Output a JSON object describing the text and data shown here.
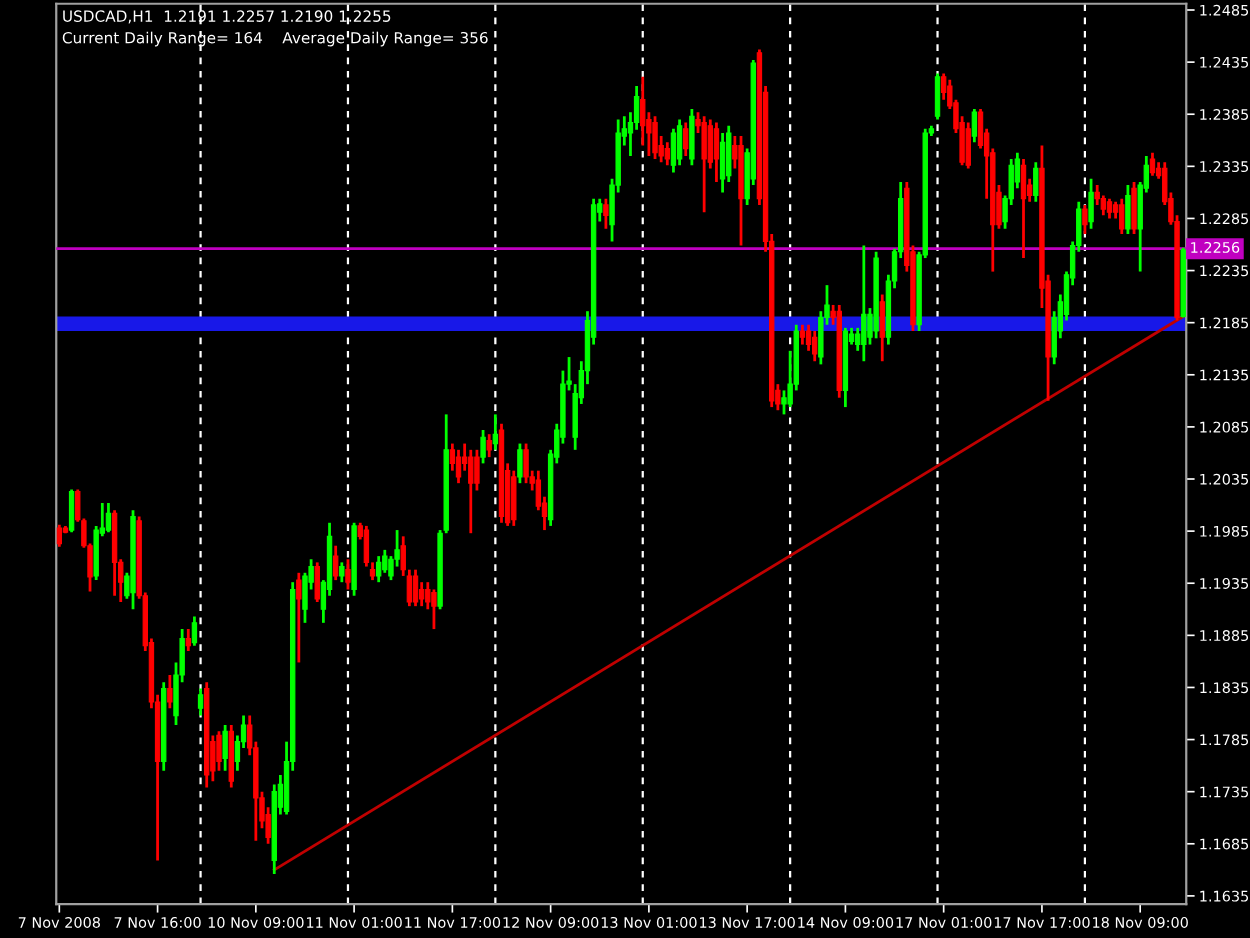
{
  "chart_data": {
    "type": "candlestick",
    "annotations": [
      "USDCAD,H1  1.2191 1.2257 1.2190 1.2255",
      "Current Daily Range= 164    Average Daily Range= 356"
    ],
    "categories": [
      "7 Nov 2008",
      null,
      null,
      null,
      null,
      null,
      null,
      null,
      null,
      null,
      null,
      null,
      null,
      null,
      null,
      null,
      "7 Nov 16:00",
      null,
      null,
      null,
      null,
      null,
      null,
      null,
      null,
      null,
      null,
      null,
      null,
      null,
      null,
      null,
      "10 Nov 09:00",
      null,
      null,
      null,
      null,
      null,
      null,
      null,
      null,
      null,
      null,
      null,
      null,
      null,
      null,
      null,
      "11 Nov 01:00",
      null,
      null,
      null,
      null,
      null,
      null,
      null,
      null,
      null,
      null,
      null,
      null,
      null,
      null,
      null,
      "11 Nov 17:00",
      null,
      null,
      null,
      null,
      null,
      null,
      null,
      null,
      null,
      null,
      null,
      null,
      null,
      null,
      null,
      "12 Nov 09:00",
      null,
      null,
      null,
      null,
      null,
      null,
      null,
      null,
      null,
      null,
      null,
      null,
      null,
      null,
      null,
      "13 Nov 01:00",
      null,
      null,
      null,
      null,
      null,
      null,
      null,
      null,
      null,
      null,
      null,
      null,
      null,
      null,
      null,
      "13 Nov 17:00",
      null,
      null,
      null,
      null,
      null,
      null,
      null,
      null,
      null,
      null,
      null,
      null,
      null,
      null,
      null,
      "14 Nov 09:00",
      null,
      null,
      null,
      null,
      null,
      null,
      null,
      null,
      null,
      null,
      null,
      null,
      null,
      null,
      null,
      "17 Nov 01:00",
      null,
      null,
      null,
      null,
      null,
      null,
      null,
      null,
      null,
      null,
      null,
      null,
      null,
      null,
      null,
      "17 Nov 17:00",
      null,
      null,
      null,
      null,
      null,
      null,
      null,
      null,
      null,
      null,
      null,
      null,
      null,
      null,
      null,
      "18 Nov 09:00",
      null,
      null,
      null,
      null,
      null,
      null,
      null
    ],
    "ohlc": [
      [
        1.1988,
        1.1991,
        1.197,
        1.1973
      ],
      [
        1.1988,
        1.199,
        1.1983,
        1.1984
      ],
      [
        1.1986,
        1.2025,
        1.1984,
        1.2023
      ],
      [
        1.2023,
        1.2025,
        1.1994,
        1.1996
      ],
      [
        1.1995,
        1.1997,
        1.1969,
        1.1971
      ],
      [
        1.1971,
        1.1973,
        1.1927,
        1.1941
      ],
      [
        1.1942,
        1.199,
        1.1938,
        1.1986
      ],
      [
        1.1983,
        1.2012,
        1.198,
        1.1988
      ],
      [
        1.1986,
        1.2012,
        1.1984,
        1.2002
      ],
      [
        1.2002,
        1.2005,
        1.1923,
        1.1955
      ],
      [
        1.1955,
        1.1958,
        1.1917,
        1.1936
      ],
      [
        1.1923,
        1.1945,
        1.192,
        1.1942
      ],
      [
        1.1926,
        1.2005,
        1.191,
        1.1999
      ],
      [
        1.1995,
        1.1999,
        1.192,
        1.1923
      ],
      [
        1.1923,
        1.1926,
        1.187,
        1.1875
      ],
      [
        1.1878,
        1.1882,
        1.1815,
        1.1821
      ],
      [
        1.1821,
        1.1828,
        1.1669,
        1.1764
      ],
      [
        1.1764,
        1.184,
        1.1755,
        1.1834
      ],
      [
        1.1834,
        1.1847,
        1.1815,
        1.1821
      ],
      [
        1.1808,
        1.1859,
        1.1799,
        1.1847
      ],
      [
        1.1847,
        1.1891,
        1.184,
        1.1882
      ],
      [
        1.1882,
        1.1891,
        1.187,
        1.1875
      ],
      [
        1.1878,
        1.1903,
        1.1875,
        1.1897
      ],
      [
        1.1815,
        1.1834,
        1.1808,
        1.1828
      ],
      [
        1.1834,
        1.184,
        1.1739,
        1.1751
      ],
      [
        1.1783,
        1.1789,
        1.1745,
        1.1755
      ],
      [
        1.1789,
        1.1793,
        1.1755,
        1.1764
      ],
      [
        1.1767,
        1.1799,
        1.1755,
        1.1793
      ],
      [
        1.1793,
        1.1799,
        1.1739,
        1.1745
      ],
      [
        1.1764,
        1.1789,
        1.1755,
        1.1783
      ],
      [
        1.1783,
        1.1808,
        1.1777,
        1.1799
      ],
      [
        1.1799,
        1.1808,
        1.177,
        1.1777
      ],
      [
        1.1777,
        1.1783,
        1.1688,
        1.1729
      ],
      [
        1.1729,
        1.1735,
        1.17,
        1.1707
      ],
      [
        1.1713,
        1.172,
        1.1685,
        1.1691
      ],
      [
        1.1669,
        1.1742,
        1.1656,
        1.1735
      ],
      [
        1.172,
        1.1751,
        1.1713,
        1.1742
      ],
      [
        1.1716,
        1.1783,
        1.1713,
        1.1764
      ],
      [
        1.1764,
        1.1936,
        1.1755,
        1.1929
      ],
      [
        1.1938,
        1.1945,
        1.1859,
        1.192
      ],
      [
        1.191,
        1.1945,
        1.1897,
        1.1942
      ],
      [
        1.1936,
        1.1958,
        1.1929,
        1.1951
      ],
      [
        1.1951,
        1.1955,
        1.1917,
        1.192
      ],
      [
        1.191,
        1.1938,
        1.1897,
        1.1936
      ],
      [
        1.1929,
        1.1993,
        1.1923,
        1.198
      ],
      [
        1.1961,
        1.1971,
        1.1938,
        1.1942
      ],
      [
        1.1942,
        1.1955,
        1.1936,
        1.1951
      ],
      [
        1.1948,
        1.1958,
        1.1929,
        1.1936
      ],
      [
        1.1929,
        1.1993,
        1.1923,
        1.199
      ],
      [
        1.199,
        1.1993,
        1.1977,
        1.198
      ],
      [
        1.1986,
        1.199,
        1.1951,
        1.1955
      ],
      [
        1.1948,
        1.1955,
        1.1938,
        1.1942
      ],
      [
        1.1942,
        1.1961,
        1.1936,
        1.1955
      ],
      [
        1.1948,
        1.1967,
        1.1945,
        1.1961
      ],
      [
        1.1942,
        1.1961,
        1.1938,
        1.1958
      ],
      [
        1.1958,
        1.1986,
        1.1951,
        1.1967
      ],
      [
        1.1971,
        1.198,
        1.1942,
        1.1948
      ],
      [
        1.1942,
        1.1948,
        1.1913,
        1.1917
      ],
      [
        1.1942,
        1.1948,
        1.1913,
        1.1917
      ],
      [
        1.1929,
        1.1936,
        1.1913,
        1.192
      ],
      [
        1.1929,
        1.1936,
        1.191,
        1.1917
      ],
      [
        1.1926,
        1.1929,
        1.1891,
        1.1913
      ],
      [
        1.1913,
        1.1986,
        1.191,
        1.1983
      ],
      [
        1.1986,
        1.2097,
        1.1983,
        1.2063
      ],
      [
        1.2063,
        1.2069,
        1.2043,
        1.205
      ],
      [
        1.2056,
        1.2063,
        1.2031,
        1.2037
      ],
      [
        1.2056,
        1.2069,
        1.2043,
        1.205
      ],
      [
        1.2056,
        1.2063,
        1.1983,
        1.2031
      ],
      [
        1.2056,
        1.2063,
        1.2024,
        1.2031
      ],
      [
        1.2056,
        1.2082,
        1.205,
        1.2075
      ],
      [
        1.2072,
        1.2078,
        1.2056,
        1.2063
      ],
      [
        1.2069,
        1.2097,
        1.2063,
        1.2078
      ],
      [
        1.2082,
        1.2088,
        1.1993,
        1.1999
      ],
      [
        1.2043,
        1.205,
        1.199,
        1.1993
      ],
      [
        1.2037,
        1.2043,
        1.199,
        1.1996
      ],
      [
        1.2037,
        1.2069,
        1.2031,
        1.2063
      ],
      [
        1.2063,
        1.2069,
        1.2031,
        1.2037
      ],
      [
        1.2037,
        1.2043,
        1.2024,
        1.2031
      ],
      [
        1.2034,
        1.2043,
        1.2005,
        1.2009
      ],
      [
        1.2012,
        1.2018,
        1.1986,
        1.1999
      ],
      [
        1.1996,
        1.2063,
        1.199,
        1.2059
      ],
      [
        1.2056,
        1.2088,
        1.205,
        1.2082
      ],
      [
        1.2075,
        1.2139,
        1.2069,
        1.2126
      ],
      [
        1.2126,
        1.2152,
        1.212,
        1.2129
      ],
      [
        1.2075,
        1.2126,
        1.2063,
        1.2117
      ],
      [
        1.2113,
        1.2148,
        1.2107,
        1.2139
      ],
      [
        1.2139,
        1.2196,
        1.2126,
        1.2187
      ],
      [
        1.2171,
        1.2304,
        1.2164,
        1.2298
      ],
      [
        1.2291,
        1.2304,
        1.2282,
        1.2299
      ],
      [
        1.2298,
        1.2304,
        1.2275,
        1.2288
      ],
      [
        1.2279,
        1.2323,
        1.2263,
        1.2317
      ],
      [
        1.2317,
        1.238,
        1.231,
        1.2367
      ],
      [
        1.2364,
        1.2383,
        1.2355,
        1.2371
      ],
      [
        1.2367,
        1.2387,
        1.2345,
        1.2377
      ],
      [
        1.2377,
        1.2412,
        1.237,
        1.2402
      ],
      [
        1.2399,
        1.2421,
        1.2355,
        1.2374
      ],
      [
        1.238,
        1.2387,
        1.2345,
        1.2367
      ],
      [
        1.2377,
        1.2383,
        1.2342,
        1.2348
      ],
      [
        1.2355,
        1.2364,
        1.2339,
        1.2345
      ],
      [
        1.2352,
        1.2358,
        1.2336,
        1.2342
      ],
      [
        1.2336,
        1.2371,
        1.2329,
        1.2367
      ],
      [
        1.2342,
        1.238,
        1.2336,
        1.2374
      ],
      [
        1.2371,
        1.2377,
        1.2345,
        1.2352
      ],
      [
        1.2342,
        1.239,
        1.2336,
        1.2383
      ],
      [
        1.238,
        1.2387,
        1.2367,
        1.2374
      ],
      [
        1.2377,
        1.2383,
        1.2291,
        1.2342
      ],
      [
        1.2374,
        1.238,
        1.2333,
        1.2339
      ],
      [
        1.2371,
        1.2377,
        1.232,
        1.2342
      ],
      [
        1.2323,
        1.2367,
        1.231,
        1.2358
      ],
      [
        1.2326,
        1.2374,
        1.232,
        1.2367
      ],
      [
        1.2355,
        1.2364,
        1.2333,
        1.2342
      ],
      [
        1.2355,
        1.2364,
        1.2259,
        1.2304
      ],
      [
        1.2304,
        1.2352,
        1.2298,
        1.2348
      ],
      [
        1.2323,
        1.2437,
        1.2317,
        1.2434
      ],
      [
        1.2444,
        1.2447,
        1.2298,
        1.2304
      ],
      [
        1.2406,
        1.2412,
        1.2253,
        1.2263
      ],
      [
        1.2263,
        1.227,
        1.2104,
        1.211
      ],
      [
        1.212,
        1.2126,
        1.2101,
        1.2107
      ],
      [
        1.2107,
        1.212,
        1.2097,
        1.2113
      ],
      [
        1.2107,
        1.2158,
        1.2104,
        1.2126
      ],
      [
        1.2126,
        1.2183,
        1.212,
        1.2177
      ],
      [
        1.2177,
        1.2183,
        1.2164,
        1.2171
      ],
      [
        1.2177,
        1.2183,
        1.2158,
        1.2164
      ],
      [
        1.2171,
        1.2177,
        1.2148,
        1.2155
      ],
      [
        1.2152,
        1.2196,
        1.2145,
        1.219
      ],
      [
        1.219,
        1.2221,
        1.2183,
        1.2202
      ],
      [
        1.2196,
        1.2202,
        1.2183,
        1.219
      ],
      [
        1.2196,
        1.2202,
        1.2113,
        1.212
      ],
      [
        1.212,
        1.218,
        1.2104,
        1.2177
      ],
      [
        1.2167,
        1.218,
        1.2164,
        1.2174
      ],
      [
        1.2164,
        1.218,
        1.2158,
        1.2174
      ],
      [
        1.2164,
        1.2259,
        1.2148,
        1.2193
      ],
      [
        1.2171,
        1.2199,
        1.2164,
        1.2193
      ],
      [
        1.2177,
        1.2253,
        1.217,
        1.2247
      ],
      [
        1.2205,
        1.2212,
        1.2148,
        1.2171
      ],
      [
        1.2171,
        1.2231,
        1.2164,
        1.2225
      ],
      [
        1.2225,
        1.2256,
        1.2218,
        1.2253
      ],
      [
        1.2253,
        1.232,
        1.2247,
        1.2304
      ],
      [
        1.2314,
        1.232,
        1.2234,
        1.224
      ],
      [
        1.2253,
        1.2259,
        1.2177,
        1.2183
      ],
      [
        1.2183,
        1.2253,
        1.2177,
        1.225
      ],
      [
        1.225,
        1.2371,
        1.2247,
        1.2367
      ],
      [
        1.2367,
        1.2374,
        1.2364,
        1.2371
      ],
      [
        1.2383,
        1.2424,
        1.238,
        1.2421
      ],
      [
        1.2421,
        1.2424,
        1.2399,
        1.2406
      ],
      [
        1.2412,
        1.2418,
        1.239,
        1.2393
      ],
      [
        1.2396,
        1.2399,
        1.2367,
        1.2371
      ],
      [
        1.2377,
        1.2383,
        1.2336,
        1.2339
      ],
      [
        1.2371,
        1.2377,
        1.2333,
        1.2336
      ],
      [
        1.2364,
        1.239,
        1.2358,
        1.2387
      ],
      [
        1.2387,
        1.239,
        1.2352,
        1.2355
      ],
      [
        1.2367,
        1.2371,
        1.2304,
        1.2345
      ],
      [
        1.2348,
        1.2352,
        1.2234,
        1.2279
      ],
      [
        1.231,
        1.2317,
        1.2275,
        1.2279
      ],
      [
        1.2282,
        1.2307,
        1.2275,
        1.2304
      ],
      [
        1.2304,
        1.2342,
        1.2298,
        1.2336
      ],
      [
        1.232,
        1.2348,
        1.2314,
        1.2342
      ],
      [
        1.2336,
        1.2342,
        1.2247,
        1.2304
      ],
      [
        1.2317,
        1.2323,
        1.2301,
        1.2307
      ],
      [
        1.2307,
        1.2339,
        1.2301,
        1.2333
      ],
      [
        1.2333,
        1.2355,
        1.2199,
        1.2218
      ],
      [
        1.2225,
        1.2231,
        1.211,
        1.2152
      ],
      [
        1.2152,
        1.2196,
        1.2145,
        1.219
      ],
      [
        1.2177,
        1.2212,
        1.217,
        1.2205
      ],
      [
        1.2193,
        1.2234,
        1.2187,
        1.2231
      ],
      [
        1.2228,
        1.2263,
        1.2221,
        1.2259
      ],
      [
        1.2259,
        1.2301,
        1.2253,
        1.2294
      ],
      [
        1.2294,
        1.2298,
        1.227,
        1.2279
      ],
      [
        1.2282,
        1.2323,
        1.2275,
        1.231
      ],
      [
        1.231,
        1.2317,
        1.2298,
        1.2304
      ],
      [
        1.2304,
        1.2307,
        1.2288,
        1.2294
      ],
      [
        1.2301,
        1.2304,
        1.2285,
        1.2291
      ],
      [
        1.2298,
        1.2301,
        1.2285,
        1.2291
      ],
      [
        1.2298,
        1.2304,
        1.227,
        1.2275
      ],
      [
        1.2275,
        1.2317,
        1.227,
        1.2307
      ],
      [
        1.2314,
        1.232,
        1.227,
        1.2275
      ],
      [
        1.2275,
        1.232,
        1.2234,
        1.2317
      ],
      [
        1.2314,
        1.2345,
        1.231,
        1.2336
      ],
      [
        1.2342,
        1.2348,
        1.2326,
        1.2329
      ],
      [
        1.2333,
        1.2339,
        1.2323,
        1.2326
      ],
      [
        1.2333,
        1.2339,
        1.2298,
        1.2301
      ],
      [
        1.2304,
        1.231,
        1.2279,
        1.2282
      ],
      [
        1.2282,
        1.2288,
        1.2187,
        1.219
      ],
      [
        1.2191,
        1.2257,
        1.219,
        1.2255
      ]
    ],
    "colors": [
      "#ff0000",
      "#ff0000",
      "#00ff00",
      "#ff0000",
      "#ff0000",
      "#ff0000",
      "#00ff00",
      "#00ff00",
      "#00ff00",
      "#ff0000",
      "#ff0000",
      "#00ff00",
      "#00ff00",
      "#ff0000",
      "#ff0000",
      "#ff0000",
      "#ff0000",
      "#00ff00",
      "#ff0000",
      "#00ff00",
      "#00ff00",
      "#ff0000",
      "#00ff00",
      "#00ff00",
      "#ff0000",
      "#ff0000",
      "#ff0000",
      "#00ff00",
      "#ff0000",
      "#00ff00",
      "#00ff00",
      "#ff0000",
      "#ff0000",
      "#ff0000",
      "#ff0000",
      "#00ff00",
      "#00ff00",
      "#00ff00",
      "#00ff00",
      "#ff0000",
      "#00ff00",
      "#00ff00",
      "#ff0000",
      "#00ff00",
      "#00ff00",
      "#ff0000",
      "#00ff00",
      "#ff0000",
      "#00ff00",
      "#ff0000",
      "#ff0000",
      "#ff0000",
      "#00ff00",
      "#00ff00",
      "#00ff00",
      "#00ff00",
      "#ff0000",
      "#ff0000",
      "#ff0000",
      "#ff0000",
      "#ff0000",
      "#ff0000",
      "#00ff00",
      "#00ff00",
      "#ff0000",
      "#ff0000",
      "#ff0000",
      "#ff0000",
      "#ff0000",
      "#00ff00",
      "#ff0000",
      "#00ff00",
      "#ff0000",
      "#ff0000",
      "#ff0000",
      "#00ff00",
      "#ff0000",
      "#ff0000",
      "#ff0000",
      "#ff0000",
      "#00ff00",
      "#00ff00",
      "#00ff00",
      "#00ff00",
      "#00ff00",
      "#00ff00",
      "#00ff00",
      "#00ff00",
      "#00ff00",
      "#ff0000",
      "#00ff00",
      "#00ff00",
      "#00ff00",
      "#00ff00",
      "#00ff00",
      "#ff0000",
      "#ff0000",
      "#ff0000",
      "#ff0000",
      "#ff0000",
      "#00ff00",
      "#00ff00",
      "#ff0000",
      "#00ff00",
      "#ff0000",
      "#ff0000",
      "#ff0000",
      "#ff0000",
      "#00ff00",
      "#00ff00",
      "#ff0000",
      "#ff0000",
      "#00ff00",
      "#00ff00",
      "#ff0000",
      "#ff0000",
      "#ff0000",
      "#ff0000",
      "#00ff00",
      "#00ff00",
      "#00ff00",
      "#ff0000",
      "#ff0000",
      "#ff0000",
      "#00ff00",
      "#00ff00",
      "#ff0000",
      "#ff0000",
      "#00ff00",
      "#00ff00",
      "#00ff00",
      "#00ff00",
      "#00ff00",
      "#00ff00",
      "#ff0000",
      "#00ff00",
      "#00ff00",
      "#00ff00",
      "#ff0000",
      "#ff0000",
      "#00ff00",
      "#00ff00",
      "#00ff00",
      "#00ff00",
      "#ff0000",
      "#ff0000",
      "#ff0000",
      "#ff0000",
      "#ff0000",
      "#00ff00",
      "#ff0000",
      "#ff0000",
      "#ff0000",
      "#ff0000",
      "#00ff00",
      "#00ff00",
      "#00ff00",
      "#ff0000",
      "#ff0000",
      "#00ff00",
      "#ff0000",
      "#ff0000",
      "#00ff00",
      "#00ff00",
      "#00ff00",
      "#00ff00",
      "#00ff00",
      "#ff0000",
      "#00ff00",
      "#ff0000",
      "#ff0000",
      "#ff0000",
      "#ff0000",
      "#ff0000",
      "#00ff00",
      "#ff0000",
      "#00ff00",
      "#00ff00",
      "#ff0000",
      "#ff0000",
      "#ff0000",
      "#ff0000",
      "#ff0000",
      "#00ff00"
    ],
    "series": [
      {
        "type": "line",
        "color": "#c00000",
        "values": [
          null,
          null,
          null,
          null,
          null,
          null,
          null,
          null,
          null,
          null,
          null,
          null,
          null,
          null,
          null,
          null,
          null,
          null,
          null,
          null,
          null,
          null,
          null,
          null,
          null,
          null,
          null,
          null,
          null,
          null,
          null,
          null,
          null,
          null,
          null,
          1.166,
          null,
          null,
          null,
          null,
          null,
          null,
          null,
          null,
          null,
          null,
          null,
          null,
          null,
          null,
          null,
          null,
          null,
          null,
          null,
          null,
          null,
          null,
          null,
          null,
          null,
          null,
          null,
          null,
          null,
          null,
          null,
          null,
          null,
          null,
          null,
          null,
          null,
          null,
          null,
          null,
          null,
          null,
          null,
          null,
          null,
          null,
          null,
          null,
          null,
          null,
          null,
          null,
          null,
          null,
          null,
          null,
          null,
          null,
          null,
          null,
          null,
          null,
          null,
          null,
          null,
          null,
          null,
          null,
          null,
          null,
          null,
          null,
          null,
          null,
          null,
          null,
          null,
          null,
          null,
          null,
          null,
          null,
          null,
          null,
          null,
          null,
          null,
          null,
          null,
          null,
          null,
          null,
          null,
          null,
          null,
          null,
          null,
          null,
          null,
          null,
          null,
          null,
          null,
          null,
          null,
          null,
          null,
          null,
          null,
          null,
          null,
          null,
          null,
          null,
          null,
          null,
          null,
          null,
          null,
          null,
          null,
          null,
          null,
          null,
          null,
          null,
          null,
          null,
          null,
          null,
          null,
          null,
          null,
          null,
          null,
          null,
          null,
          null,
          null,
          null,
          null,
          null,
          null,
          null,
          null,
          null,
          null,
          1.2191
        ]
      }
    ],
    "ylim": [
      1.1627,
      1.2491
    ],
    "yticks": [
      1.1635,
      1.1685,
      1.1735,
      1.1785,
      1.1835,
      1.1885,
      1.1935,
      1.1985,
      1.2035,
      1.2085,
      1.2135,
      1.2185,
      1.2235,
      1.2285,
      1.2335,
      1.2385,
      1.2435,
      1.2485
    ],
    "ref_lines": [
      {
        "axis": "y",
        "value": 1.2256,
        "label": "1.2256",
        "color": "#c000c0",
        "line_style": "solid"
      }
    ],
    "bands": [
      {
        "axis": "y",
        "from": 1.2177,
        "to": 1.2191,
        "color": "#1818e8"
      }
    ]
  }
}
